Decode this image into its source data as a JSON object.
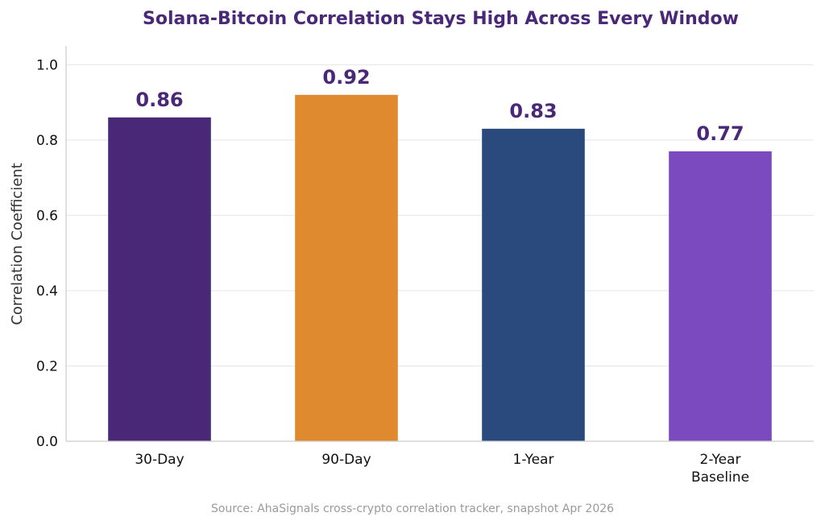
{
  "chart_data": {
    "type": "bar",
    "title": "Solana-Bitcoin Correlation Stays High Across Every Window",
    "ylabel": "Correlation Coefficient",
    "xlabel": "",
    "categories": [
      [
        "30-Day"
      ],
      [
        "90-Day"
      ],
      [
        "1-Year"
      ],
      [
        "2-Year",
        "Baseline"
      ]
    ],
    "values": [
      0.86,
      0.92,
      0.83,
      0.77
    ],
    "value_labels": [
      "0.86",
      "0.92",
      "0.83",
      "0.77"
    ],
    "bar_colors": [
      "#4a2878",
      "#df8a2e",
      "#2a4a7e",
      "#7b4abf"
    ],
    "ylim": [
      0,
      1.05
    ],
    "yticks": [
      0.0,
      0.2,
      0.4,
      0.6,
      0.8,
      1.0
    ],
    "ytick_labels": [
      "0.0",
      "0.2",
      "0.4",
      "0.6",
      "0.8",
      "1.0"
    ],
    "grid": "horizontal",
    "legend": "none",
    "source": "Source: AhaSignals cross-crypto correlation tracker, snapshot Apr 2026",
    "colors": {
      "title": "#4a2878",
      "value_labels": "#4a2878",
      "grid": "#e6e6e6",
      "axis": "#cccccc"
    }
  }
}
